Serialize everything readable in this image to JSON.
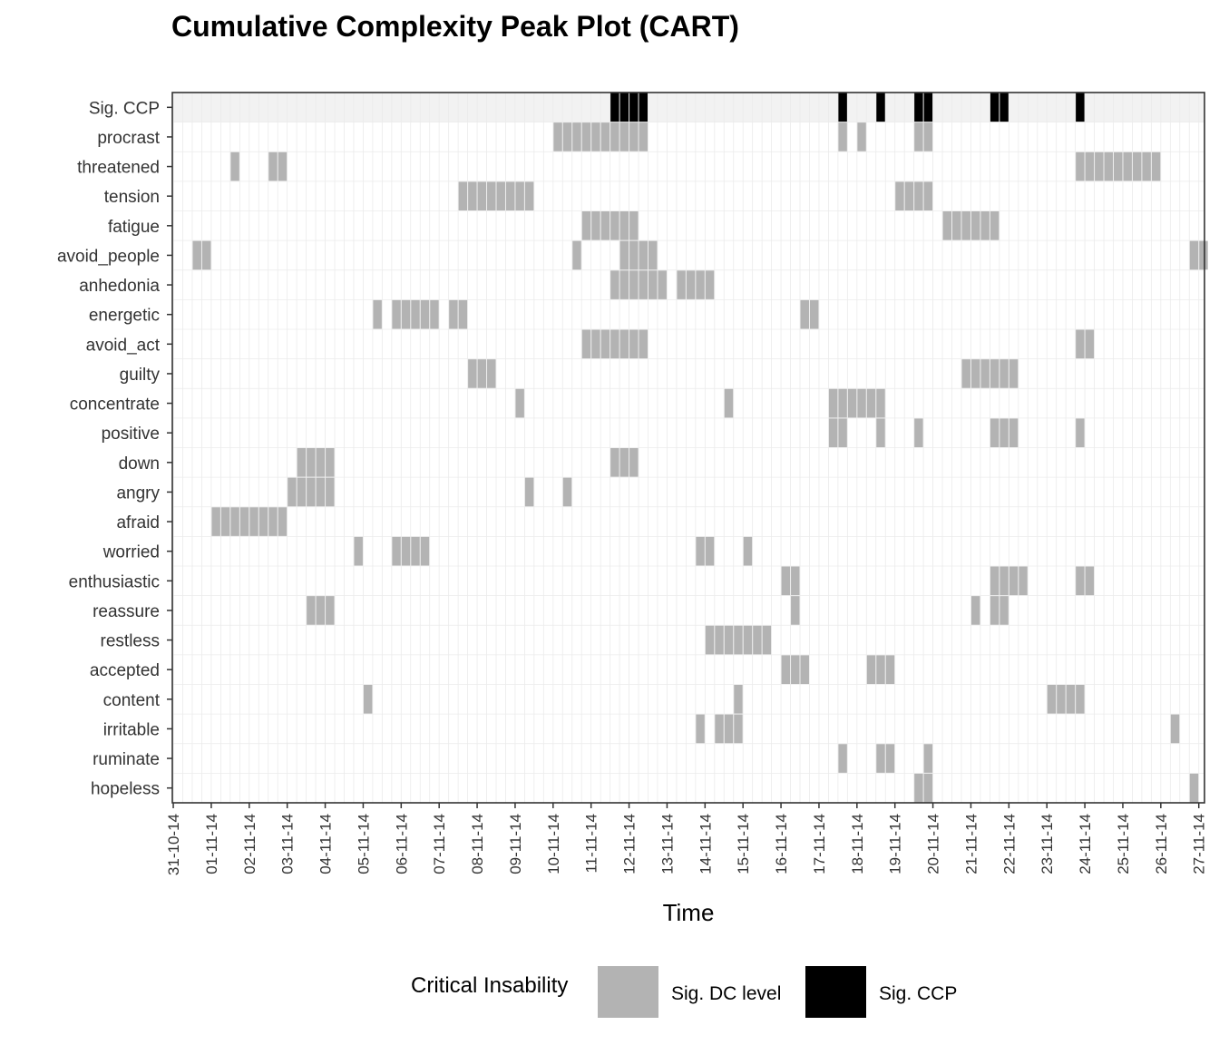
{
  "chart_data": {
    "type": "heatmap",
    "title": "Cumulative Complexity Peak Plot (CART)",
    "xlabel": "Time",
    "ylabel": "",
    "x_ticks": [
      "31-10-14",
      "01-11-14",
      "02-11-14",
      "03-11-14",
      "04-11-14",
      "05-11-14",
      "06-11-14",
      "07-11-14",
      "08-11-14",
      "09-11-14",
      "10-11-14",
      "11-11-14",
      "12-11-14",
      "13-11-14",
      "14-11-14",
      "15-11-14",
      "16-11-14",
      "17-11-14",
      "18-11-14",
      "19-11-14",
      "20-11-14",
      "21-11-14",
      "22-11-14",
      "23-11-14",
      "24-11-14",
      "25-11-14",
      "26-11-14",
      "27-11-14"
    ],
    "samples_per_day": 4,
    "x_range_samples": [
      -0.1,
      108.6
    ],
    "grid": true,
    "legend": {
      "title": "Critical Insability",
      "position": "bottom",
      "entries": [
        {
          "label": "Sig. DC level",
          "color": "#b3b3b3"
        },
        {
          "label": "Sig. CCP",
          "color": "#000000"
        }
      ]
    },
    "colors": {
      "dc": "#b3b3b3",
      "ccp": "#000000",
      "ccp_row_background": "#f2f2f2",
      "grid": "#ebebeb"
    },
    "rows": [
      {
        "name": "Sig. CCP",
        "kind": "ccp",
        "segments": [
          [
            46,
            50
          ],
          [
            70,
            71
          ],
          [
            74,
            75
          ],
          [
            78,
            80
          ],
          [
            86,
            88
          ],
          [
            95,
            96
          ]
        ]
      },
      {
        "name": "procrast",
        "segments": [
          [
            40,
            50
          ],
          [
            70,
            71
          ],
          [
            72,
            73
          ],
          [
            78,
            80
          ]
        ]
      },
      {
        "name": "threatened",
        "segments": [
          [
            6,
            7
          ],
          [
            10,
            12
          ],
          [
            95,
            104
          ]
        ]
      },
      {
        "name": "tension",
        "segments": [
          [
            30,
            38
          ],
          [
            76,
            80
          ]
        ]
      },
      {
        "name": "fatigue",
        "segments": [
          [
            43,
            49
          ],
          [
            81,
            87
          ]
        ]
      },
      {
        "name": "avoid_people",
        "segments": [
          [
            2,
            4
          ],
          [
            42,
            43
          ],
          [
            47,
            51
          ],
          [
            107,
            109
          ]
        ]
      },
      {
        "name": "anhedonia",
        "segments": [
          [
            46,
            52
          ],
          [
            53,
            57
          ]
        ]
      },
      {
        "name": "energetic",
        "segments": [
          [
            21,
            22
          ],
          [
            23,
            28
          ],
          [
            29,
            31
          ],
          [
            66,
            68
          ]
        ]
      },
      {
        "name": "avoid_act",
        "segments": [
          [
            43,
            50
          ],
          [
            95,
            97
          ]
        ]
      },
      {
        "name": "guilty",
        "segments": [
          [
            31,
            34
          ],
          [
            83,
            89
          ]
        ]
      },
      {
        "name": "concentrate",
        "segments": [
          [
            36,
            37
          ],
          [
            58,
            59
          ],
          [
            69,
            75
          ]
        ]
      },
      {
        "name": "positive",
        "segments": [
          [
            69,
            71
          ],
          [
            74,
            75
          ],
          [
            78,
            79
          ],
          [
            86,
            89
          ],
          [
            95,
            96
          ]
        ]
      },
      {
        "name": "down",
        "segments": [
          [
            13,
            17
          ],
          [
            46,
            49
          ]
        ]
      },
      {
        "name": "angry",
        "segments": [
          [
            12,
            17
          ],
          [
            37,
            38
          ],
          [
            41,
            42
          ]
        ]
      },
      {
        "name": "afraid",
        "segments": [
          [
            4,
            12
          ]
        ]
      },
      {
        "name": "worried",
        "segments": [
          [
            19,
            20
          ],
          [
            23,
            27
          ],
          [
            55,
            57
          ],
          [
            60,
            61
          ]
        ]
      },
      {
        "name": "enthusiastic",
        "segments": [
          [
            64,
            66
          ],
          [
            86,
            90
          ],
          [
            95,
            97
          ]
        ]
      },
      {
        "name": "reassure",
        "segments": [
          [
            14,
            17
          ],
          [
            65,
            66
          ],
          [
            84,
            85
          ],
          [
            86,
            88
          ]
        ]
      },
      {
        "name": "restless",
        "segments": [
          [
            56,
            63
          ]
        ]
      },
      {
        "name": "accepted",
        "segments": [
          [
            64,
            67
          ],
          [
            73,
            76
          ]
        ]
      },
      {
        "name": "content",
        "segments": [
          [
            20,
            21
          ],
          [
            59,
            60
          ],
          [
            92,
            96
          ]
        ]
      },
      {
        "name": "irritable",
        "segments": [
          [
            55,
            56
          ],
          [
            57,
            60
          ],
          [
            105,
            106
          ]
        ]
      },
      {
        "name": "ruminate",
        "segments": [
          [
            70,
            71
          ],
          [
            74,
            76
          ],
          [
            79,
            80
          ]
        ]
      },
      {
        "name": "hopeless",
        "segments": [
          [
            78,
            80
          ],
          [
            107,
            108
          ]
        ]
      }
    ]
  }
}
